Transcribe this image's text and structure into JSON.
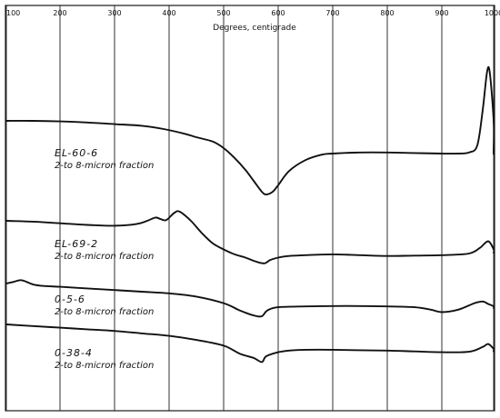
{
  "chart_data": {
    "type": "line",
    "xlabel": "Degrees, centigrade",
    "ylabel": "",
    "xlim": [
      100,
      1015
    ],
    "x_ticks": [
      100,
      200,
      300,
      400,
      500,
      600,
      700,
      800,
      900,
      1000
    ],
    "x_tick_labels": [
      "100",
      "200",
      "300",
      "400",
      "500",
      "600",
      "700",
      "800",
      "900",
      "1000"
    ],
    "grid": true,
    "series": [
      {
        "name": "EL-60-6",
        "subtitle": "2-to 8-micron fraction",
        "x": [
          100,
          150,
          200,
          250,
          300,
          350,
          390,
          430,
          450,
          480,
          500,
          520,
          540,
          555,
          570,
          578,
          590,
          600,
          620,
          650,
          680,
          700,
          750,
          800,
          850,
          900,
          930,
          950,
          965,
          975,
          983,
          988,
          995,
          1005,
          1015
        ],
        "y": [
          100,
          100,
          99,
          97,
          94,
          91,
          85,
          76,
          70,
          62,
          50,
          32,
          10,
          -10,
          -30,
          -35,
          -30,
          -18,
          8,
          28,
          38,
          40,
          42,
          42,
          41,
          40,
          40,
          42,
          55,
          120,
          190,
          188,
          100,
          45,
          40
        ]
      },
      {
        "name": "EL-69-2",
        "subtitle": "2-to 8-micron fraction",
        "x": [
          100,
          150,
          200,
          250,
          300,
          340,
          360,
          375,
          385,
          395,
          410,
          420,
          440,
          460,
          480,
          500,
          520,
          540,
          560,
          575,
          585,
          600,
          620,
          650,
          700,
          750,
          800,
          850,
          900,
          950,
          970,
          985,
          1000,
          1015
        ],
        "y": [
          100,
          98,
          94,
          90,
          88,
          92,
          100,
          108,
          104,
          102,
          120,
          122,
          100,
          70,
          45,
          30,
          18,
          10,
          0,
          -4,
          4,
          10,
          14,
          16,
          18,
          16,
          14,
          15,
          16,
          20,
          34,
          50,
          30,
          22
        ]
      },
      {
        "name": "0-5-6",
        "subtitle": "2-to 8-micron fraction",
        "x": [
          100,
          115,
          130,
          150,
          170,
          200,
          250,
          300,
          350,
          400,
          450,
          500,
          530,
          555,
          570,
          580,
          600,
          650,
          700,
          750,
          800,
          850,
          880,
          900,
          930,
          960,
          975,
          985,
          1000,
          1015
        ],
        "y": [
          100,
          104,
          108,
          98,
          94,
          92,
          88,
          84,
          80,
          76,
          68,
          52,
          34,
          22,
          20,
          34,
          42,
          44,
          45,
          45,
          44,
          42,
          36,
          30,
          36,
          52,
          56,
          50,
          44,
          40
        ]
      },
      {
        "name": "0-38-4",
        "subtitle": "2-to 8-micron fraction",
        "x": [
          100,
          150,
          200,
          250,
          300,
          350,
          400,
          450,
          500,
          530,
          555,
          570,
          578,
          600,
          620,
          650,
          700,
          750,
          800,
          850,
          900,
          950,
          975,
          985,
          995,
          1005,
          1015
        ],
        "y": [
          100,
          96,
          92,
          88,
          84,
          78,
          72,
          62,
          48,
          28,
          18,
          8,
          22,
          32,
          36,
          38,
          38,
          37,
          36,
          34,
          32,
          33,
          45,
          52,
          40,
          36,
          34
        ]
      }
    ]
  }
}
